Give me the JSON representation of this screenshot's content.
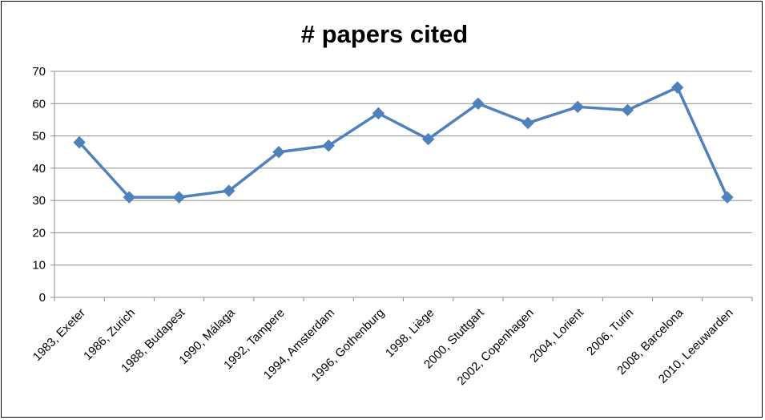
{
  "chart_data": {
    "type": "line",
    "title": "# papers cited",
    "xlabel": "",
    "ylabel": "",
    "categories": [
      "1983, Exeter",
      "1986, Zurich",
      "1988, Budapest",
      "1990, Málaga",
      "1992, Tampere",
      "1994, Amsterdam",
      "1996, Gothenburg",
      "1998, Liège",
      "2000, Stuttgart",
      "2002, Copenhagen",
      "2004, Lorient",
      "2006, Turin",
      "2008, Barcelona",
      "2010, Leeuwarden"
    ],
    "series": [
      {
        "values": [
          48,
          31,
          31,
          33,
          45,
          47,
          57,
          49,
          60,
          54,
          59,
          58,
          65,
          31
        ],
        "color": "#4f81bd",
        "marker": "diamond"
      }
    ],
    "ylim": [
      0,
      70
    ],
    "yticks": [
      0,
      10,
      20,
      30,
      40,
      50,
      60,
      70
    ],
    "grid": true,
    "legend": "none"
  }
}
